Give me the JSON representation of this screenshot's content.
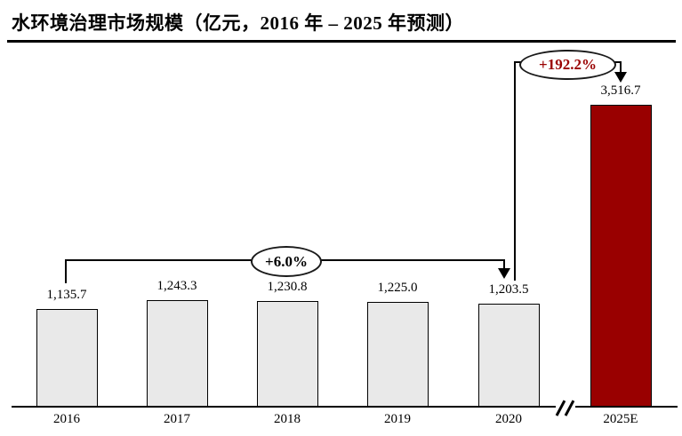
{
  "chart_data": {
    "type": "bar",
    "title": "水环境治理市场规模（亿元，2016 年 – 2025 年预测）",
    "categories": [
      "2016",
      "2017",
      "2018",
      "2019",
      "2020",
      "2025E"
    ],
    "values": [
      1135.7,
      1243.3,
      1230.8,
      1225.0,
      1203.5,
      3516.7
    ],
    "value_labels": [
      "1,135.7",
      "1,243.3",
      "1,230.8",
      "1,225.0",
      "1,203.5",
      "3,516.7"
    ],
    "highlight_index": 5,
    "ylim": [
      0,
      3700
    ],
    "grid": false,
    "legend": false,
    "x_axis_break": {
      "between": [
        "2020",
        "2025E"
      ],
      "symbol": "//"
    },
    "annotations": [
      {
        "label": "+6.0%",
        "from": "2016",
        "to": "2020",
        "text_color": "#000000"
      },
      {
        "label": "+192.2%",
        "from": "2020",
        "to": "2025E",
        "text_color": "#990000"
      }
    ],
    "colors": {
      "bar_fill": "#E9E9E9",
      "bar_border": "#000000",
      "highlight_bar_fill": "#990000",
      "axis": "#000000"
    }
  }
}
